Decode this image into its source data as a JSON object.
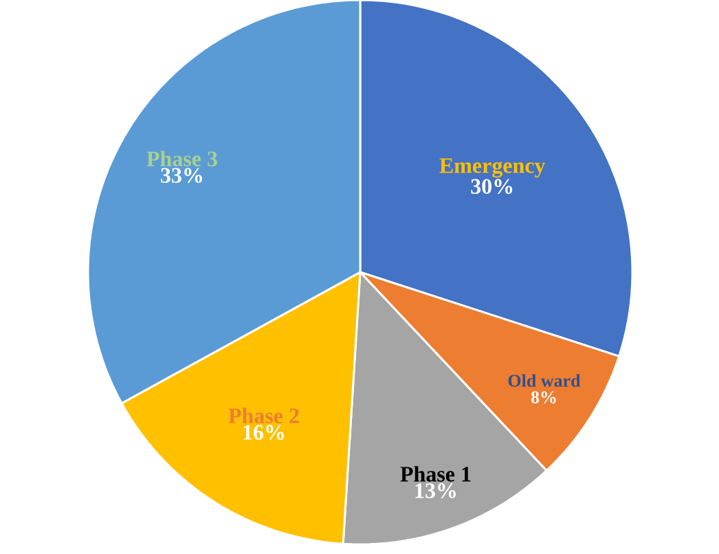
{
  "chart_data": {
    "type": "pie",
    "categories": [
      "Emergency",
      "Old ward",
      "Phase 1",
      "Phase 2",
      "Phase 3"
    ],
    "values": [
      30,
      8,
      13,
      16,
      33
    ],
    "colors": [
      "#4472c4",
      "#ed7d31",
      "#a5a5a5",
      "#ffc000",
      "#5b9bd5"
    ],
    "value_labels": [
      "30%",
      "8%",
      "13%",
      "16%",
      "33%"
    ]
  }
}
